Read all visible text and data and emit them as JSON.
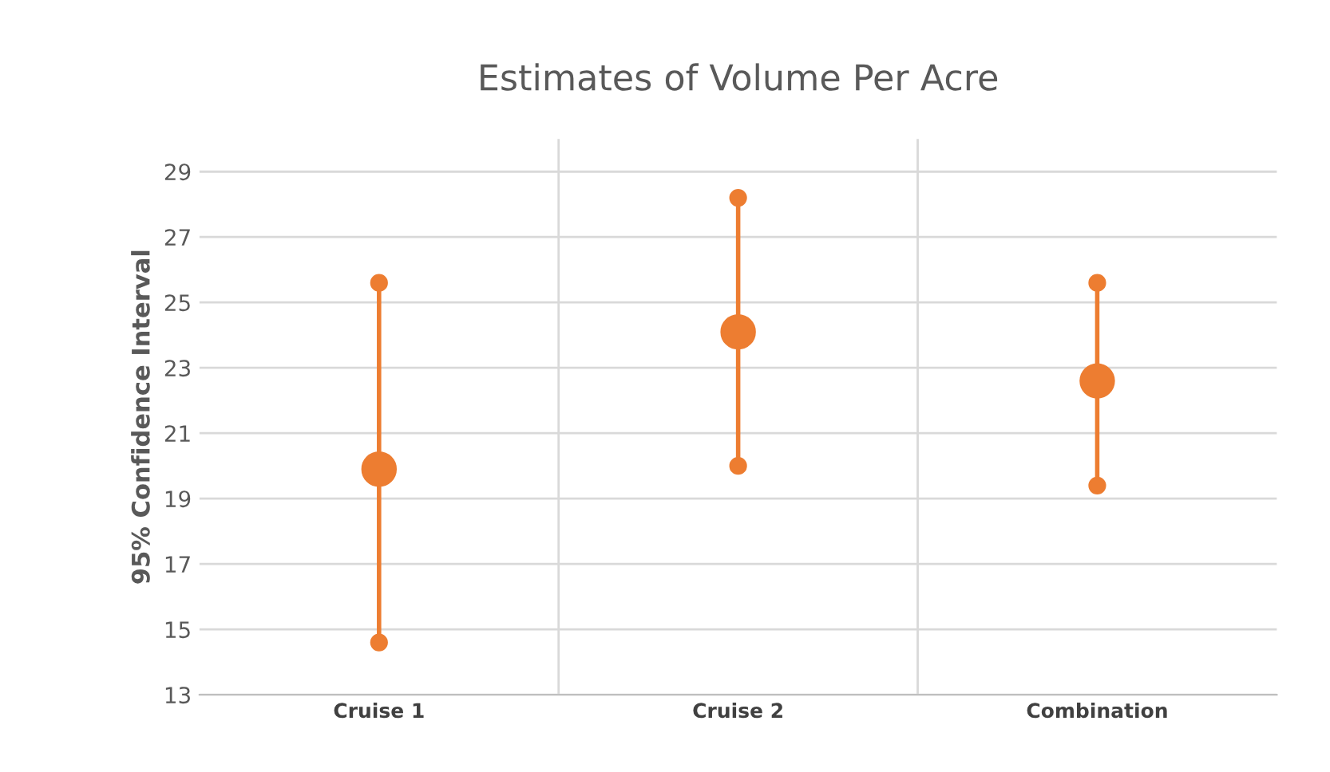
{
  "chart_data": {
    "type": "scatter",
    "title": "Estimates of Volume Per Acre",
    "ylabel": "95% Confidence Interval",
    "categories": [
      "Cruise 1",
      "Cruise 2",
      "Combination"
    ],
    "series": [
      {
        "type": "line",
        "color": "#ed7d31",
        "x": [
          "Cruise 1",
          "Cruise 1"
        ],
        "values": [
          14.6,
          25.6
        ]
      },
      {
        "type": "line",
        "color": "#ed7d31",
        "x": [
          "Cruise 2",
          "Cruise 2"
        ],
        "values": [
          20.0,
          28.2
        ]
      },
      {
        "type": "line",
        "color": "#ed7d31",
        "x": [
          "Combination",
          "Combination"
        ],
        "values": [
          19.4,
          25.6
        ]
      },
      {
        "color": "#ed7d31",
        "values": [
          19.9,
          24.1,
          22.6
        ]
      }
    ],
    "ylim": [
      13,
      30
    ],
    "yticks": [
      13,
      15,
      17,
      19,
      21,
      23,
      25,
      27,
      29
    ],
    "grid": true,
    "marker": "circle"
  }
}
